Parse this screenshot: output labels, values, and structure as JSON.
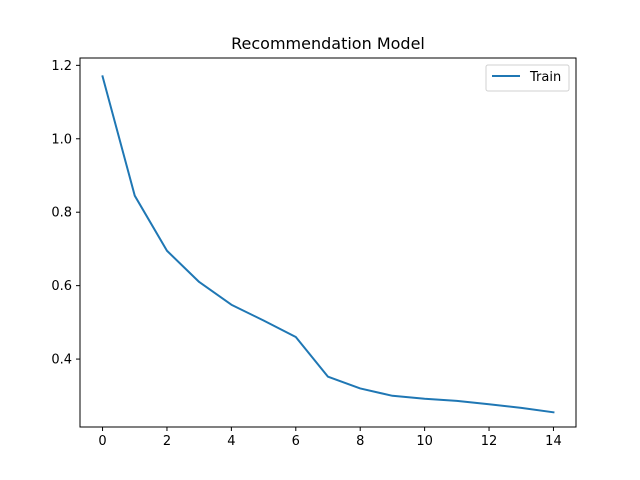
{
  "chart_data": {
    "type": "line",
    "title": "Recommendation Model",
    "xlabel": "",
    "ylabel": "",
    "xlim": [
      -0.7,
      14.7
    ],
    "ylim": [
      0.215,
      1.22
    ],
    "xticks": [
      0,
      2,
      4,
      6,
      8,
      10,
      12,
      14
    ],
    "yticks": [
      0.4,
      0.6,
      0.8,
      1.0,
      1.2
    ],
    "ytick_labels": [
      "0.4",
      "0.6",
      "0.8",
      "1.0",
      "1.2"
    ],
    "grid": false,
    "legend_position": "top-right",
    "series": [
      {
        "name": "Train",
        "color": "#1f77b4",
        "x": [
          0,
          1,
          2,
          3,
          4,
          5,
          6,
          7,
          8,
          9,
          10,
          11,
          12,
          13,
          14
        ],
        "y": [
          1.17,
          0.845,
          0.695,
          0.61,
          0.548,
          0.505,
          0.46,
          0.352,
          0.32,
          0.3,
          0.292,
          0.286,
          0.277,
          0.267,
          0.255
        ]
      }
    ]
  }
}
